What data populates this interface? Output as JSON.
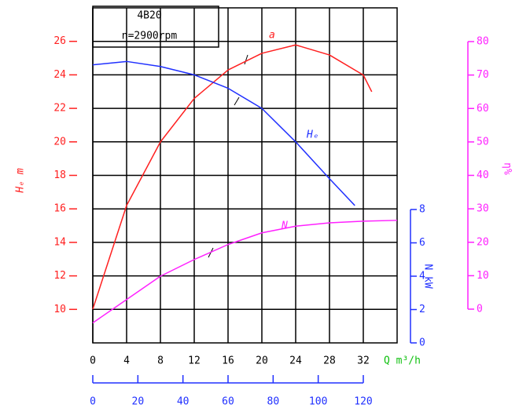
{
  "chart_data": {
    "type": "line",
    "title_lines": [
      "4B20",
      "n=2900rpm"
    ],
    "xlabel": "Q m³/h",
    "ylabel": "Hₑ m",
    "y2label": "η%",
    "y3label": "N kW",
    "xlim": [
      0,
      36
    ],
    "xticks": [
      0,
      4,
      8,
      12,
      16,
      20,
      24,
      28,
      32
    ],
    "x2lim": [
      0,
      120
    ],
    "x2ticks": [
      0,
      20,
      40,
      60,
      80,
      100,
      120
    ],
    "ylim": [
      8,
      28
    ],
    "yticks": [
      10,
      12,
      14,
      16,
      18,
      20,
      22,
      24,
      26
    ],
    "y2lim": [
      0,
      80
    ],
    "y2ticks": [
      0,
      10,
      20,
      30,
      40,
      50,
      60,
      70,
      80
    ],
    "y3lim": [
      0,
      8
    ],
    "y3ticks": [
      0,
      2,
      4,
      6,
      8
    ],
    "grid": true,
    "series": [
      {
        "name": "a",
        "color": "#ff2020",
        "axis": "y2",
        "x": [
          0,
          4,
          8,
          12,
          16,
          20,
          24,
          28,
          32,
          33
        ],
        "values": [
          0,
          31,
          50,
          63,
          71.5,
          76.5,
          79,
          76,
          70,
          65
        ]
      },
      {
        "name": "Hₑ",
        "color": "#2030ff",
        "axis": "y",
        "x": [
          0,
          4,
          8,
          12,
          16,
          20,
          24,
          28,
          31
        ],
        "values": [
          24.6,
          24.8,
          24.5,
          24,
          23.2,
          22,
          20,
          17.8,
          16.2
        ]
      },
      {
        "name": "N",
        "color": "#ff20ff",
        "axis": "y3",
        "x": [
          0,
          4,
          8,
          12,
          16,
          20,
          24,
          28,
          32,
          36
        ],
        "values": [
          1.2,
          2.6,
          4,
          5,
          5.9,
          6.6,
          7,
          7.2,
          7.3,
          7.35
        ]
      }
    ]
  }
}
